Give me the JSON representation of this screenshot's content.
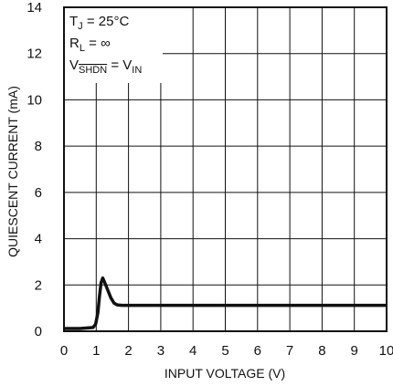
{
  "chart_data": {
    "type": "line",
    "xlabel": "INPUT VOLTAGE (V)",
    "ylabel": "QUIESCENT CURRENT (mA)",
    "xlim": [
      0,
      10
    ],
    "ylim": [
      0,
      14
    ],
    "x_ticks": [
      "0",
      "1",
      "2",
      "3",
      "4",
      "5",
      "6",
      "7",
      "8",
      "9",
      "10"
    ],
    "y_ticks": [
      "0",
      "2",
      "4",
      "6",
      "8",
      "10",
      "12",
      "14"
    ],
    "grid": true,
    "annotations": {
      "line1": {
        "main": "T",
        "sub": "J",
        "rest": " = 25°C"
      },
      "line2": {
        "main": "R",
        "sub": "L",
        "rest": " = ∞"
      },
      "line3": {
        "main": "V",
        "sub": "SHDN",
        "mid": " = V",
        "sub2": "IN"
      }
    },
    "series": [
      {
        "color": "#111111",
        "x": [
          0,
          0.5,
          0.9,
          0.98,
          1.05,
          1.1,
          1.15,
          1.2,
          1.25,
          1.35,
          1.45,
          1.55,
          1.65,
          1.8,
          2.0,
          4.0,
          6.0,
          8.0,
          10.0
        ],
        "y": [
          0.12,
          0.12,
          0.16,
          0.3,
          0.8,
          1.5,
          2.1,
          2.3,
          2.15,
          1.8,
          1.45,
          1.22,
          1.14,
          1.12,
          1.12,
          1.12,
          1.12,
          1.12,
          1.12
        ]
      }
    ]
  }
}
